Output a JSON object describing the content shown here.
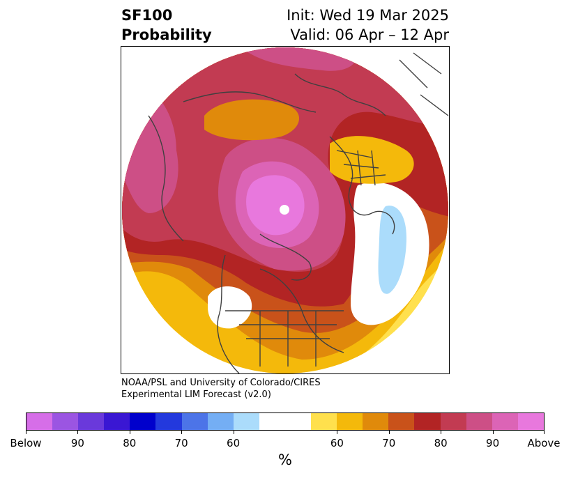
{
  "title": {
    "left_line1": "SF100",
    "left_line2": "Probability",
    "right_line1": "Init: Wed 19 Mar 2025",
    "right_line2": "Valid: 06 Apr – 12 Apr"
  },
  "credit": {
    "line1": "NOAA/PSL and University of Colorado/CIRES",
    "line2": "Experimental LIM Forecast (v2.0)"
  },
  "colorbar": {
    "segments": [
      "#d66ee8",
      "#9b55e2",
      "#6a39db",
      "#3a17d3",
      "#0000cc",
      "#2339dd",
      "#4c74e8",
      "#74aef4",
      "#abdcfb",
      "#ffffff",
      "#ffe04d",
      "#f4b90b",
      "#e08a0b",
      "#c9521a",
      "#b22424",
      "#c23b52",
      "#cd4f86",
      "#dc64b6",
      "#e878dd"
    ],
    "tick_labels": [
      "Below",
      "90",
      "80",
      "70",
      "60",
      "60",
      "70",
      "80",
      "90",
      "Above"
    ],
    "units": "%"
  },
  "map": {
    "coast_color": "#404040",
    "field_colors": {
      "outer": "#ffe04d",
      "gold": "#f4b90b",
      "orange": "#e08a0b",
      "burnt": "#c9521a",
      "red": "#b22424",
      "crimson": "#c23b52",
      "rose": "#cd4f86",
      "pink": "#dc64b6",
      "magenta": "#e878dd",
      "lightblue": "#abdcfb",
      "white": "#ffffff"
    }
  }
}
